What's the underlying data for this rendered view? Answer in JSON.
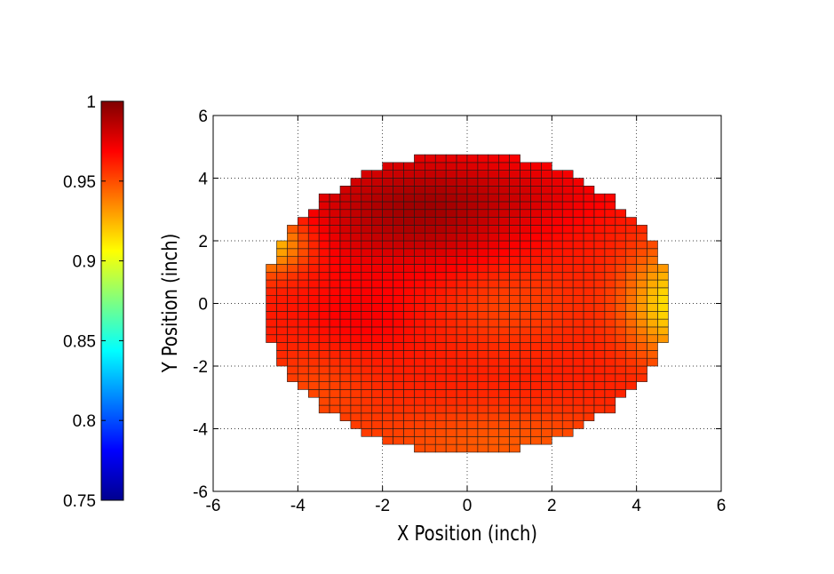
{
  "chart_data": {
    "type": "heatmap",
    "title": "",
    "xlabel": "X Position (inch)",
    "ylabel": "Y Position (inch)",
    "xlim": [
      -6,
      6
    ],
    "ylim": [
      -6,
      6
    ],
    "x_ticks": [
      "-6",
      "-4",
      "-2",
      "0",
      "2",
      "4",
      "6"
    ],
    "y_ticks": [
      "-6",
      "-4",
      "-2",
      "0",
      "2",
      "4",
      "6"
    ],
    "grid": true,
    "grid_style": "dotted",
    "colormap": "jet",
    "colorbar": {
      "position": "left",
      "range": [
        0.75,
        1.0
      ],
      "ticks": [
        "0.75",
        "0.8",
        "0.85",
        "0.9",
        "0.95",
        "1"
      ]
    },
    "cell_size_inch": 0.25,
    "wafer_radius_inch": 4.75,
    "value_range": [
      0.905,
      0.995
    ],
    "regions": [
      {
        "description": "upper-left / top band (darkest)",
        "approx_value": 0.99
      },
      {
        "description": "center",
        "approx_value": 0.95
      },
      {
        "description": "lower-left",
        "approx_value": 0.96
      },
      {
        "description": "bottom edge",
        "approx_value": 0.945
      },
      {
        "description": "left edge near y=2",
        "approx_value": 0.91
      },
      {
        "description": "right edge near y=0",
        "approx_value": 0.91
      }
    ]
  }
}
